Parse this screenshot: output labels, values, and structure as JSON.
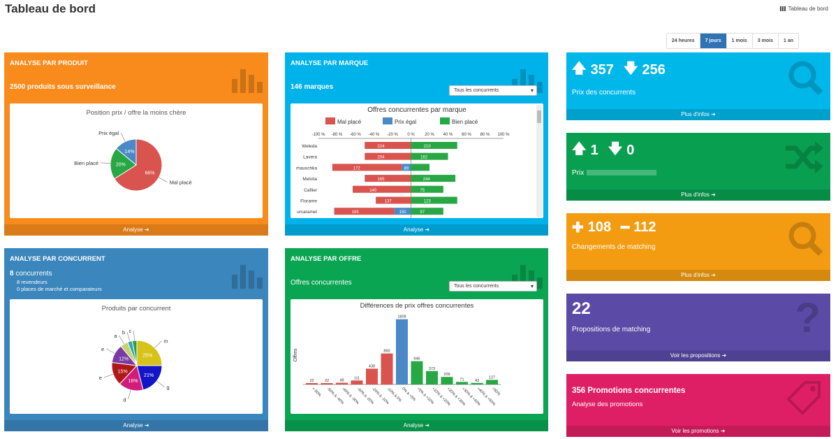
{
  "header": {
    "title": "Tableau de bord",
    "breadcrumb": "Tableau de bord"
  },
  "periods": [
    "24 heures",
    "7 jours",
    "1 mois",
    "3 mois",
    "1 an"
  ],
  "active_period": "7 jours",
  "produit": {
    "heading": "ANALYSE PAR PRODUIT",
    "count": "2500",
    "count_label": "produits sous surveillance",
    "footer": "Analyse",
    "chart_data": {
      "type": "pie",
      "title": "Position prix / offre la moins chère",
      "labels": [
        "Mal placé",
        "Bien placé",
        "Prix égal"
      ],
      "values": [
        66,
        20,
        14
      ],
      "data_labels": [
        "66%",
        "20%",
        "14%"
      ],
      "colors": [
        "#d9534f",
        "#28a745",
        "#4a89c5"
      ]
    }
  },
  "marque": {
    "heading": "ANALYSE PAR MARQUE",
    "count": "146",
    "count_label": "marques",
    "select": "Tous les concurrents",
    "footer": "Analyse",
    "chart_data": {
      "type": "bar",
      "title": "Offres concurrentes par marque",
      "legend": [
        "Mal placé",
        "Prix égal",
        "Bien placé"
      ],
      "x_ticks": [
        "-100 %",
        "-80 %",
        "-60 %",
        "-40 %",
        "-20 %",
        "0 %",
        "20 %",
        "40 %",
        "60 %",
        "80 %",
        "100 %"
      ],
      "categories": [
        "Weleda",
        "Lavera",
        "rhauschka",
        "Melvita",
        "Caflier",
        "Florame",
        "urcaramel"
      ],
      "series": [
        {
          "name": "Mal placé",
          "values": [
            -50,
            -50,
            -75,
            -50,
            -63,
            -38,
            -65
          ],
          "labels": [
            "224",
            "204",
            "172",
            "165",
            "140",
            "137",
            "165"
          ]
        },
        {
          "name": "Prix égal",
          "values": [
            0,
            0,
            -10,
            0,
            0,
            0,
            -18
          ],
          "labels": [
            "",
            "",
            "89",
            "",
            "",
            "",
            "150"
          ]
        },
        {
          "name": "Bien placé",
          "values": [
            50,
            40,
            20,
            48,
            35,
            50,
            35
          ],
          "labels": [
            "210",
            "162",
            "",
            "244",
            "75",
            "123",
            "97"
          ]
        }
      ]
    }
  },
  "concurrent": {
    "heading": "ANALYSE PAR CONCURRENT",
    "count": "8",
    "count_label": "concurrents",
    "line1": "8 revendeurs",
    "line2": "0 places de marché et comparateurs",
    "footer": "Analyse",
    "chart_data": {
      "type": "pie",
      "title": "Produits par concurrent",
      "labels": [
        "m",
        "g",
        "d",
        "e",
        "e",
        "a",
        "b",
        "c"
      ],
      "values": [
        25,
        21,
        16,
        15,
        12,
        5,
        3,
        3
      ],
      "data_labels": [
        "25%",
        "21%",
        "16%",
        "15%",
        "12%",
        "",
        "",
        ""
      ],
      "colors": [
        "#d6c219",
        "#1515c8",
        "#d21c7c",
        "#b01818",
        "#7a3aa3",
        "#c7d36a",
        "#35a4b0",
        "#2f9f4f"
      ]
    }
  },
  "offre": {
    "heading": "ANALYSE PAR OFFRE",
    "subtitle": "Offres concurrentes",
    "select": "Tous les concurrents",
    "footer": "Analyse",
    "chart_data": {
      "type": "bar",
      "title": "Différences de prix offres concurrentes",
      "ylabel": "Offres",
      "categories": [
        "<-50%",
        "-50% à -40%",
        "-40% à -30%",
        "-30% à -20%",
        "-20% à -10%",
        "-10% à 0%",
        "0% à +5%",
        "+5% à +10%",
        "+10% à +20%",
        "+20% à +30%",
        "+30% à +40%",
        "+40% à +50%",
        ">50%"
      ],
      "values": [
        22,
        22,
        48,
        111,
        438,
        860,
        1809,
        646,
        373,
        209,
        71,
        43,
        127
      ],
      "colors": [
        "#d9534f",
        "#d9534f",
        "#d9534f",
        "#d9534f",
        "#d9534f",
        "#d9534f",
        "#4a89c5",
        "#28a745",
        "#28a745",
        "#28a745",
        "#28a745",
        "#28a745",
        "#28a745"
      ]
    }
  },
  "stats": [
    {
      "up": "357",
      "down": "256",
      "label": "Prix des concurrents",
      "footer": "Plus d'infos",
      "color": "#00b7ea"
    },
    {
      "up": "1",
      "down": "0",
      "label": "Prix",
      "footer": "Plus d'infos",
      "color": "#08a050"
    },
    {
      "up": "108",
      "down": "112",
      "label": "Changements de matching",
      "footer": "Plus d'infos",
      "color": "#f39c12"
    },
    {
      "value": "22",
      "label": "Propositions de matching",
      "footer": "Voir les propositions",
      "color": "#5b4aa6"
    },
    {
      "value": "356",
      "value_label": "Promotions concurrentes",
      "label": "Analyse des promotions",
      "footer": "Voir les promotions",
      "color": "#df1f65"
    }
  ]
}
